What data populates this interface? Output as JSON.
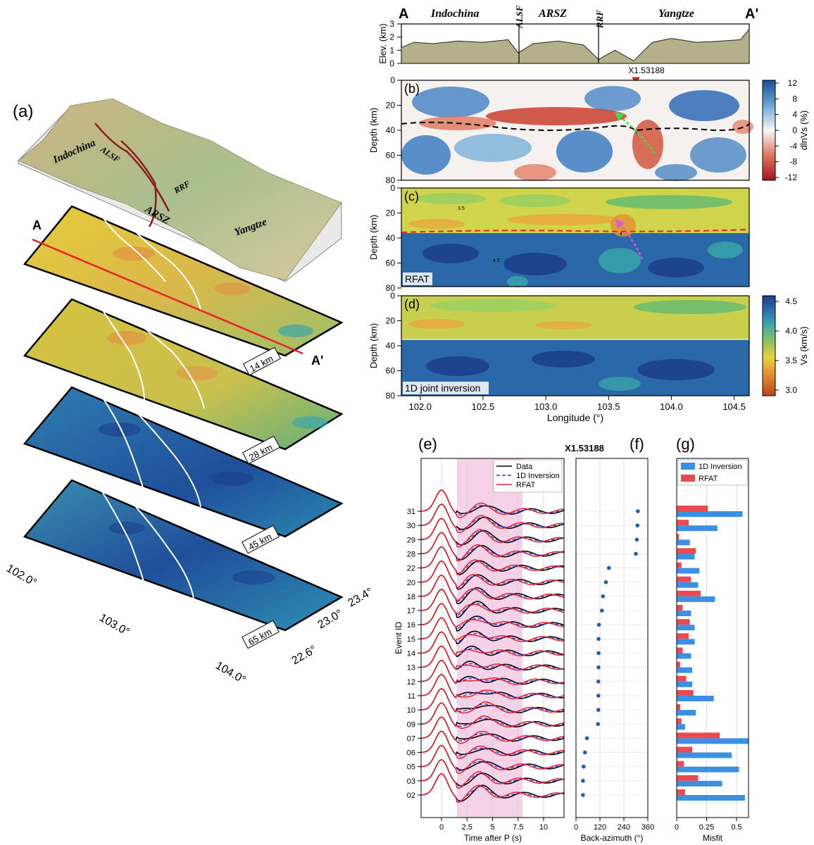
{
  "panel_labels": [
    "(a)",
    "(b)",
    "(c)",
    "(d)",
    "(e)",
    "(f)",
    "(g)"
  ],
  "map3d": {
    "terrain_labels": [
      "Indochina",
      "ALSF",
      "RRF",
      "ARSZ",
      "Yangtze"
    ],
    "profile_start": "A",
    "profile_end": "A'",
    "slice_depths": [
      "14 km",
      "28 km",
      "45 km",
      "65 km"
    ],
    "lon_ticks": [
      "102.0°",
      "103.0°",
      "104.0°"
    ],
    "lat_ticks": [
      "23.4°",
      "23.0°",
      "22.6°"
    ],
    "colors": {
      "fault": "#8b1a1a",
      "profile": "#e8202a",
      "terrain": "#c8b07a"
    }
  },
  "section_header": {
    "start": "A",
    "end": "A'",
    "regions": [
      "Indochina",
      "ARSZ",
      "Yangtze"
    ],
    "faults": [
      "ALSF",
      "RRF"
    ],
    "station": "X1.53188"
  },
  "longitude_axis": {
    "label": "Longitude (°)",
    "ticks": [
      "102.0",
      "102.5",
      "103.0",
      "103.5",
      "104.0",
      "104.5"
    ]
  },
  "chart_data": [
    {
      "type": "area",
      "panel": "elevation",
      "ylabel": "Elev. (km)",
      "ylim": [
        0,
        3
      ],
      "yticks": [
        "0",
        "1",
        "2",
        "3"
      ],
      "x": [
        101.85,
        101.95,
        102.1,
        102.3,
        102.5,
        102.7,
        102.78,
        102.9,
        103.1,
        103.3,
        103.42,
        103.55,
        103.7,
        103.85,
        104.0,
        104.2,
        104.4,
        104.55,
        104.62
      ],
      "values": [
        1.2,
        1.6,
        1.5,
        1.7,
        1.6,
        1.8,
        0.8,
        1.5,
        1.7,
        1.4,
        0.3,
        1.0,
        0.2,
        1.6,
        1.9,
        1.6,
        1.7,
        1.8,
        2.6
      ]
    },
    {
      "type": "heatmap",
      "panel": "(b)",
      "ylabel": "Depth (km)",
      "yticks": [
        "0",
        "20",
        "40",
        "60",
        "80"
      ],
      "colorbar": {
        "label": "dlnVs (%)",
        "ticks": [
          "12",
          "8",
          "4",
          "0",
          "-4",
          "-8",
          "-12"
        ]
      }
    },
    {
      "type": "heatmap",
      "panel": "(c)",
      "ylabel": "Depth (km)",
      "yticks": [
        "0",
        "20",
        "40",
        "60",
        "80"
      ],
      "tag": "RFAT",
      "contour_labels": [
        "3.5",
        "4",
        "4.5"
      ]
    },
    {
      "type": "heatmap",
      "panel": "(d)",
      "ylabel": "Depth (km)",
      "yticks": [
        "0",
        "20",
        "40",
        "60",
        "80"
      ],
      "tag": "1D joint inversion",
      "colorbar": {
        "label": "Vs (km/s)",
        "ticks": [
          "4.5",
          "4.0",
          "3.5",
          "3.0"
        ]
      }
    },
    {
      "type": "line",
      "panel": "(e)",
      "xlabel": "Time after P (s)",
      "ylabel": "Event ID",
      "xticks": [
        "0",
        "2.5",
        "5",
        "7.5",
        "10"
      ],
      "xlim": [
        -2,
        12
      ],
      "event_ids": [
        "31",
        "30",
        "29",
        "28",
        "22",
        "20",
        "18",
        "17",
        "16",
        "15",
        "14",
        "13",
        "12",
        "11",
        "10",
        "09",
        "07",
        "06",
        "05",
        "03",
        "02"
      ],
      "legend": [
        "Data",
        "1D Inversion",
        "RFAT"
      ],
      "series_colors": {
        "data": "#000000",
        "inversion": "#2b3bd6",
        "rfat": "#e8202a"
      }
    },
    {
      "type": "scatter",
      "panel": "(f)",
      "title": "X1.53188",
      "xlabel": "Back-azimuth (°)",
      "xticks": [
        "0",
        "120",
        "240",
        "360"
      ],
      "xlim": [
        0,
        360
      ],
      "values": [
        310,
        308,
        305,
        300,
        165,
        150,
        135,
        130,
        115,
        113,
        113,
        113,
        112,
        112,
        112,
        110,
        55,
        45,
        38,
        35,
        35
      ]
    },
    {
      "type": "bar",
      "panel": "(g)",
      "xlabel": "Misfit",
      "xticks": [
        "0",
        "0.25",
        "0.5"
      ],
      "xlim": [
        0,
        0.6
      ],
      "legend": [
        "1D Inversion",
        "RFAT"
      ],
      "series": [
        {
          "name": "1D Inversion",
          "color": "#3d8fe3",
          "values": [
            0.55,
            0.34,
            0.11,
            0.15,
            0.19,
            0.18,
            0.32,
            0.12,
            0.15,
            0.15,
            0.12,
            0.13,
            0.13,
            0.31,
            0.16,
            0.07,
            0.6,
            0.46,
            0.52,
            0.38,
            0.57
          ]
        },
        {
          "name": "RFAT",
          "color": "#e84a52",
          "values": [
            0.26,
            0.1,
            0.02,
            0.16,
            0.04,
            0.12,
            0.2,
            0.05,
            0.11,
            0.1,
            0.05,
            0.03,
            0.08,
            0.14,
            0.03,
            0.04,
            0.36,
            0.13,
            0.06,
            0.18,
            0.07
          ]
        }
      ]
    }
  ]
}
